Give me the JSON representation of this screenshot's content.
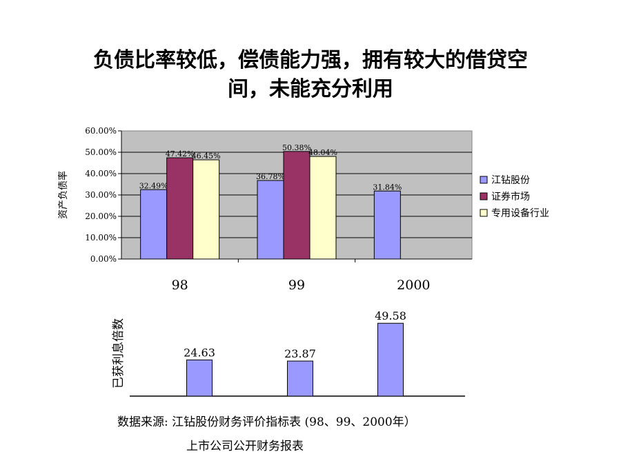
{
  "title_line1": "负债比率较低，偿债能力强，拥有较大的借贷空",
  "title_line2": "间，未能充分利用",
  "colors": {
    "jiangzuan": "#9999ff",
    "market": "#993366",
    "industry": "#ffffcc",
    "plot_bg": "#c0c0c0",
    "bar2": "#9999ff"
  },
  "chart_data": [
    {
      "type": "bar",
      "ylabel": "资产负债率",
      "categories": [
        "98",
        "99",
        "2000"
      ],
      "yticks": [
        "60.00%",
        "50.00%",
        "40.00%",
        "30.00%",
        "20.00%",
        "10.00%",
        "0.00%"
      ],
      "ylim": [
        0,
        60
      ],
      "grid": true,
      "legend_position": "right",
      "series": [
        {
          "name": "江钻股份",
          "values": [
            32.49,
            36.78,
            31.84
          ],
          "labels": [
            "32.49%",
            "36.78%",
            "31.84%"
          ]
        },
        {
          "name": "证券市场",
          "values": [
            47.42,
            50.38,
            null
          ],
          "labels": [
            "47.42%",
            "50.38%",
            ""
          ]
        },
        {
          "name": "专用设备行业",
          "values": [
            46.45,
            48.04,
            null
          ],
          "labels": [
            "46.45%",
            "48.04%",
            ""
          ]
        }
      ]
    },
    {
      "type": "bar",
      "ylabel": "已获利息倍数",
      "values": [
        24.63,
        23.87,
        49.58
      ],
      "labels": [
        "24.63",
        "23.87",
        "49.58"
      ],
      "ylim": [
        0,
        60
      ]
    }
  ],
  "source_line1": "数据来源:  江钻股份财务评价指标表  (98、99、2000年）",
  "source_line2": "上市公司公开财务报表"
}
